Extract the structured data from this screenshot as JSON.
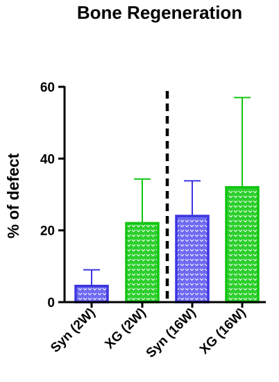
{
  "chart_data": {
    "type": "bar",
    "title": "Bone Regeneration",
    "xlabel": "",
    "ylabel": "% of defect",
    "ylim": [
      0,
      60
    ],
    "yticks": [
      0,
      20,
      40,
      60
    ],
    "categories": [
      "Syn (2W)",
      "XG (2W)",
      "Syn (16W)",
      "XG (16W)"
    ],
    "values": [
      4.5,
      22,
      24,
      32
    ],
    "error_upper": [
      9,
      34.3,
      33.8,
      57
    ],
    "bar_colors": [
      "#3b35e0",
      "#11c411",
      "#3b35e0",
      "#11c411"
    ],
    "bar_fill_colors": [
      "#6e6af0",
      "#33d633",
      "#6e6af0",
      "#33d633"
    ],
    "divider_between": [
      1,
      2
    ],
    "grid": false,
    "legend": "none"
  },
  "colors": {
    "syn": "#3b35e0",
    "xg": "#11c411",
    "axis": "#000000"
  }
}
